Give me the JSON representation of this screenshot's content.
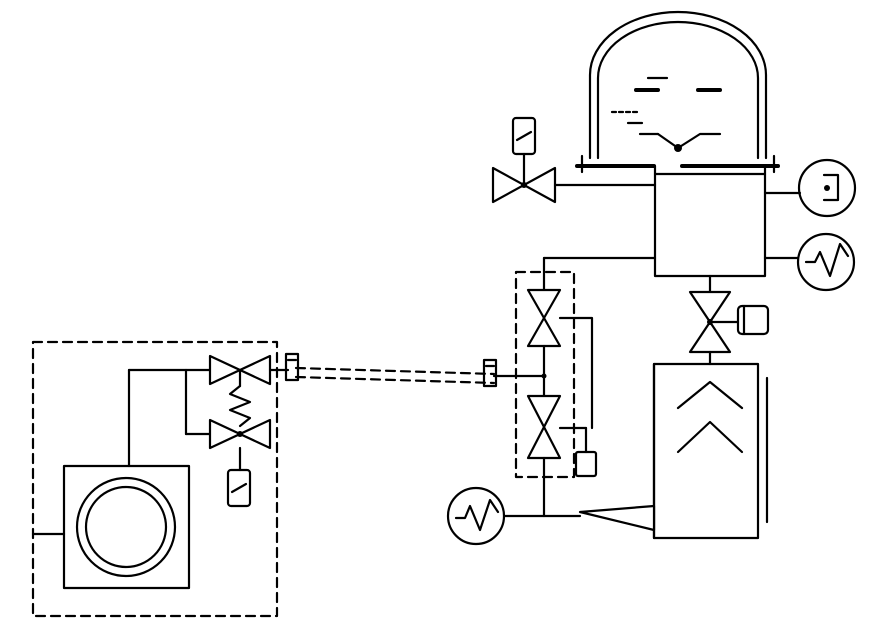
{
  "diagram": {
    "type": "vacuum-system-schematic",
    "text_labels": [],
    "components": [
      "vacuum-chamber-bell-jar",
      "vent-valve-solenoid",
      "vacuum-gauge-top",
      "vacuum-gauge-right",
      "gate-valve-pneumatic",
      "diffusion-pump",
      "foreline-gauge",
      "valve-manifold",
      "flexible-hose",
      "roughing-pump-station"
    ],
    "colors": {
      "line": "#000000",
      "background": "#ffffff"
    }
  }
}
